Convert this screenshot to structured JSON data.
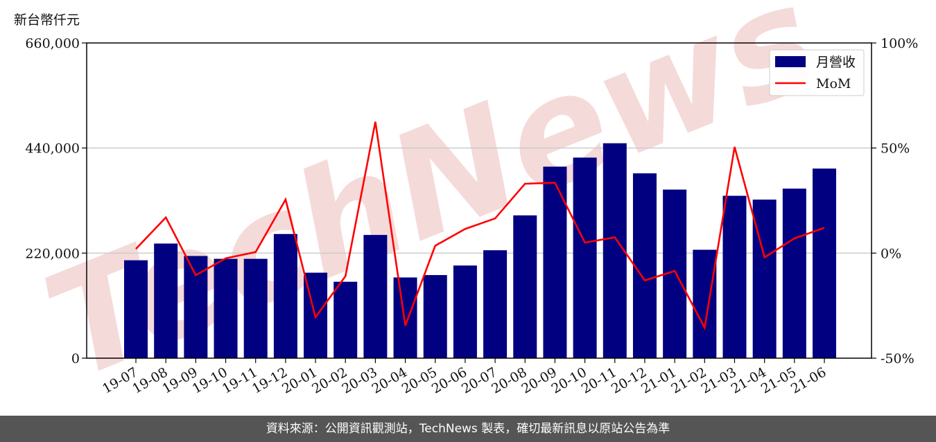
{
  "unit_label": "新台幣仟元",
  "footer_text": "資料來源：公開資訊觀測站，TechNews 製表，確切最新訊息以原站公告為準",
  "watermark_text": "TechNews",
  "colors": {
    "bar": "#000080",
    "line": "#ff0000",
    "footer_bg": "#555555",
    "watermark": "#f4d4d4"
  },
  "chart_data": {
    "type": "bar",
    "categories": [
      "19-07",
      "19-08",
      "19-09",
      "19-10",
      "19-11",
      "19-12",
      "20-01",
      "20-02",
      "20-03",
      "20-04",
      "20-05",
      "20-06",
      "20-07",
      "20-08",
      "20-09",
      "20-10",
      "20-11",
      "20-12",
      "21-01",
      "21-02",
      "21-03",
      "21-04",
      "21-05",
      "21-06"
    ],
    "series": [
      {
        "name": "月營收",
        "type": "bar",
        "axis": "left",
        "values": [
          205000,
          240000,
          214000,
          208000,
          208000,
          260000,
          179000,
          160000,
          258000,
          169000,
          174000,
          194000,
          226000,
          299000,
          401000,
          420000,
          450000,
          387000,
          353000,
          227000,
          340000,
          332000,
          355000,
          397000
        ]
      },
      {
        "name": "MoM",
        "type": "line",
        "axis": "right",
        "values": [
          2,
          17,
          -10.5,
          -2.5,
          0.5,
          25.5,
          -30.5,
          -11,
          62.5,
          -34.5,
          3.5,
          11.5,
          16.5,
          33,
          33.5,
          5,
          7.5,
          -13,
          -8.5,
          -35.5,
          50.5,
          -2,
          7,
          12
        ]
      }
    ],
    "y_left": {
      "ylim": [
        0,
        660000
      ],
      "ticks": [
        "0",
        "220,000",
        "440,000",
        "660,000"
      ]
    },
    "y_right": {
      "ylim": [
        -50,
        100
      ],
      "ticks": [
        "-50%",
        "0%",
        "50%",
        "100%"
      ]
    },
    "grid": "horizontal",
    "legend": "top-right"
  }
}
